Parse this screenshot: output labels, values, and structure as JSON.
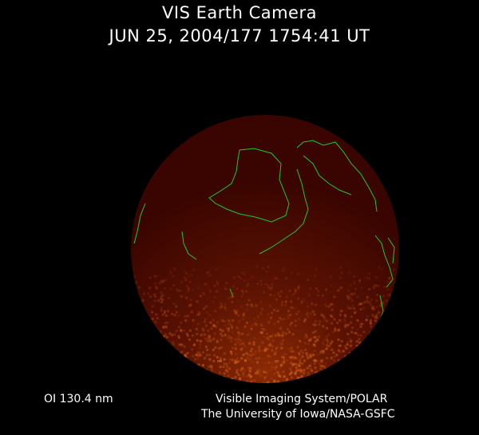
{
  "title": {
    "line1": "VIS Earth Camera",
    "line2": "JUN 25, 2004/177 1754:41 UT"
  },
  "wavelength": "OI  130.4 nm",
  "credits": {
    "line1": "Visible Imaging System/POLAR",
    "line2": "The University of Iowa/NASA-GSFC"
  },
  "colors": {
    "background": "#000000",
    "disk": "#3a0500",
    "aurora": "#d8641a",
    "coastline": "#22c81e"
  }
}
